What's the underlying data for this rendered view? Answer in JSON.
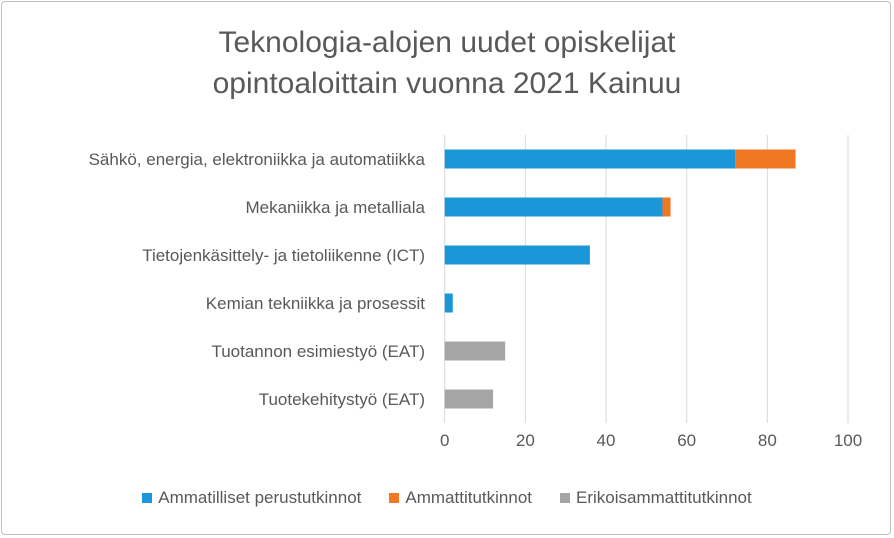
{
  "chart_data": {
    "type": "bar",
    "orientation": "horizontal",
    "stacked": true,
    "title": [
      "Teknologia-alojen uudet opiskelijat",
      "opintoaloittain vuonna 2021 Kainuu"
    ],
    "categories": [
      "Sähkö, energia, elektroniikka ja automatiikka",
      "Mekaniikka ja metalliala",
      "Tietojenkäsittely- ja tietoliikenne (ICT)",
      "Kemian tekniikka ja prosessit",
      "Tuotannon esimiestyö (EAT)",
      "Tuotekehitystyö (EAT)"
    ],
    "series": [
      {
        "name": "Ammatilliset perustutkinnot",
        "color": "#1b96d8",
        "values": [
          72,
          54,
          36,
          2,
          0,
          0
        ]
      },
      {
        "name": "Ammattitutkinnot",
        "color": "#f07822",
        "values": [
          15,
          2,
          0,
          0,
          0,
          0
        ]
      },
      {
        "name": "Erikoisammattitutkinnot",
        "color": "#a5a5a5",
        "values": [
          0,
          0,
          0,
          0,
          15,
          12
        ]
      }
    ],
    "xlim": [
      0,
      100
    ],
    "xticks": [
      "0",
      "20",
      "40",
      "60",
      "80",
      "100"
    ],
    "grid": true,
    "legend_position": "bottom"
  }
}
